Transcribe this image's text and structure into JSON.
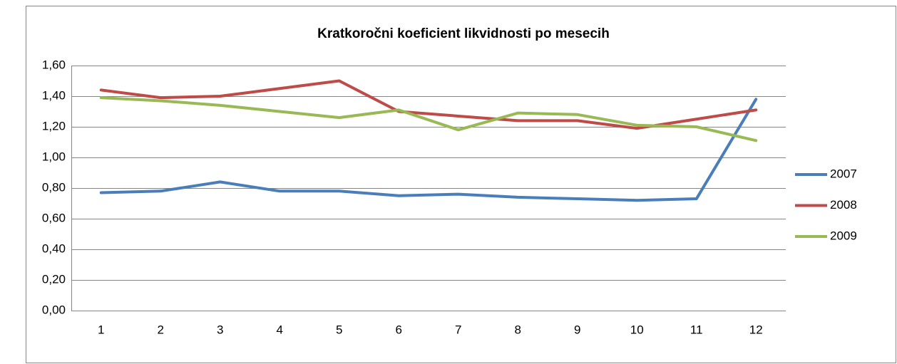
{
  "chart_data": {
    "type": "line",
    "title": "Kratkoročni koeficient likvidnosti po mesecih",
    "categories": [
      "1",
      "2",
      "3",
      "4",
      "5",
      "6",
      "7",
      "8",
      "9",
      "10",
      "11",
      "12"
    ],
    "series": [
      {
        "name": "2007",
        "color": "#4a7ebb",
        "values": [
          0.77,
          0.78,
          0.84,
          0.78,
          0.78,
          0.75,
          0.76,
          0.74,
          0.73,
          0.72,
          0.73,
          1.38
        ]
      },
      {
        "name": "2008",
        "color": "#be4b48",
        "values": [
          1.44,
          1.39,
          1.4,
          1.45,
          1.5,
          1.3,
          1.27,
          1.24,
          1.24,
          1.19,
          1.25,
          1.31
        ]
      },
      {
        "name": "2009",
        "color": "#98b954",
        "values": [
          1.39,
          1.37,
          1.34,
          1.3,
          1.26,
          1.31,
          1.18,
          1.29,
          1.28,
          1.21,
          1.2,
          1.11
        ]
      }
    ],
    "ylim": [
      0,
      1.6
    ],
    "yticks": [
      {
        "value": 0,
        "label": "0,00"
      },
      {
        "value": 0.2,
        "label": "0,20"
      },
      {
        "value": 0.4,
        "label": "0,40"
      },
      {
        "value": 0.6,
        "label": "0,60"
      },
      {
        "value": 0.8,
        "label": "0,80"
      },
      {
        "value": 1.0,
        "label": "1,00"
      },
      {
        "value": 1.2,
        "label": "1,20"
      },
      {
        "value": 1.4,
        "label": "1,40"
      },
      {
        "value": 1.6,
        "label": "1,60"
      }
    ],
    "grid": true,
    "legend": "right"
  }
}
